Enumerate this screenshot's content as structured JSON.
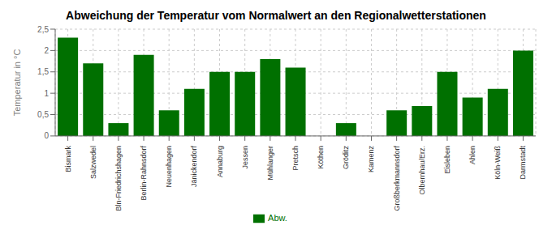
{
  "chart_data": {
    "type": "bar",
    "title": "Abweichung der Temperatur vom Normalwert an den Regionalwetterstationen",
    "ylabel": "Temperatur in °C",
    "categories": [
      "Bismark",
      "Salzwedel",
      "Bln-Friedrichshagen",
      "Berlin-Rahnsdorf",
      "Neuenhagen",
      "Jänickendorf",
      "Annaburg",
      "Jessen",
      "Mühlanger",
      "Pretsch",
      "Köthen",
      "Gröditz",
      "Kamenz",
      "Großberkmannsdorf",
      "Olbernhau/Erz.",
      "Eisleben",
      "Ahlen",
      "Köln-Weiß",
      "Darmstadt"
    ],
    "series": [
      {
        "name": "Abw.",
        "color": "#007000",
        "values": [
          2.3,
          1.7,
          0.3,
          1.9,
          0.6,
          1.1,
          1.5,
          1.5,
          1.8,
          1.6,
          0.0,
          0.3,
          0.0,
          0.6,
          0.7,
          1.5,
          0.9,
          1.1,
          2.0
        ]
      }
    ],
    "ylim": [
      0,
      2.5
    ],
    "yticks": [
      0,
      {
        "value": 0.5,
        "label": "0,5"
      },
      1,
      {
        "value": 1.5,
        "label": "1,5"
      },
      2,
      {
        "value": 2.5,
        "label": "2,5"
      }
    ],
    "grid": true,
    "legend": "bottom"
  }
}
